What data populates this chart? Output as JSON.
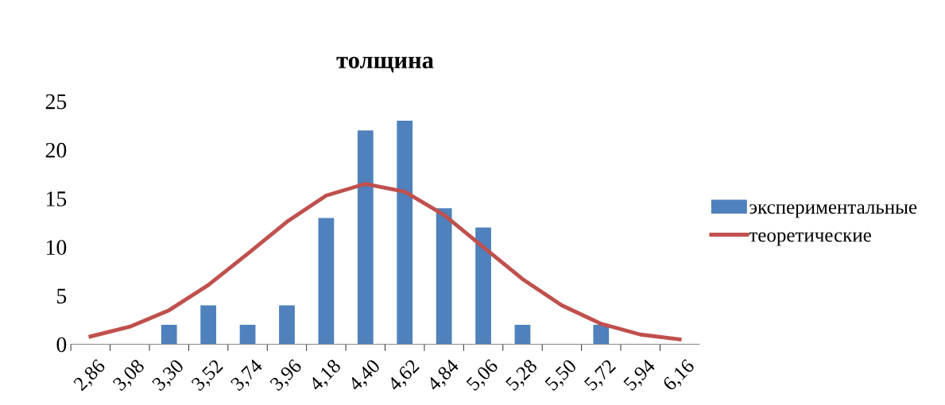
{
  "chart_data": {
    "type": "bar",
    "title": "толщина",
    "categories": [
      "2,86",
      "3,08",
      "3,30",
      "3,52",
      "3,74",
      "3,96",
      "4,18",
      "4,40",
      "4,62",
      "4,84",
      "5,06",
      "5,28",
      "5,50",
      "5,72",
      "5,94",
      "6,16"
    ],
    "series": [
      {
        "name": "экспериментальные",
        "color": "#4f81bd",
        "values": [
          0,
          0,
          2,
          4,
          2,
          4,
          13,
          22,
          23,
          14,
          12,
          2,
          0,
          2,
          0,
          0
        ]
      },
      {
        "name": "теоретические",
        "type": "line",
        "color": "#c0504d",
        "values": [
          0.8,
          1.8,
          3.5,
          6.1,
          9.3,
          12.6,
          15.3,
          16.5,
          15.7,
          13.3,
          10.0,
          6.7,
          4.0,
          2.1,
          1.0,
          0.5
        ]
      }
    ],
    "ylim": [
      0,
      25
    ],
    "yticks": [
      0,
      5,
      10,
      15,
      20,
      25
    ],
    "grid": false,
    "legend": "right"
  }
}
